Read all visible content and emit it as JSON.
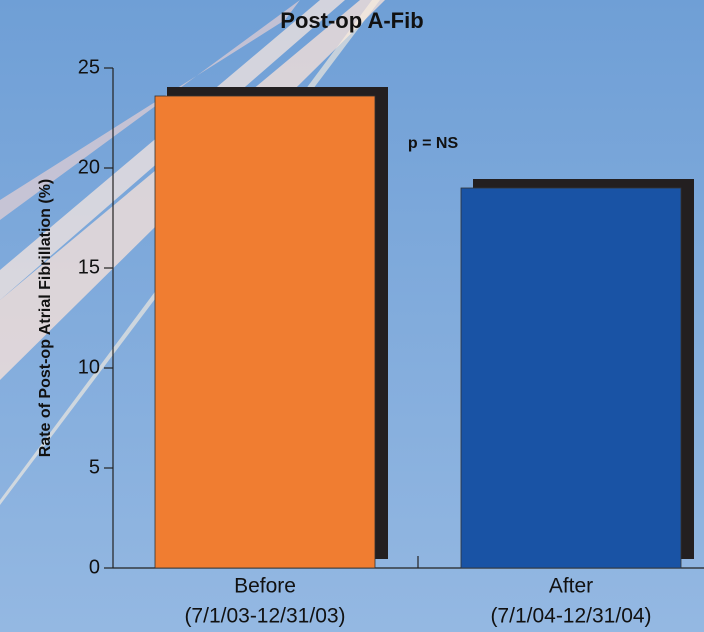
{
  "chart_data": {
    "type": "bar",
    "title": "Post-op A-Fib",
    "y_label": "Rate of Post-op Atrial Fibrillation (%)",
    "categories": [
      [
        "Before",
        "(7/1/03-12/31/03)"
      ],
      [
        "After",
        "(7/1/04-12/31/04)"
      ]
    ],
    "values": [
      23.6,
      19
    ],
    "colors": [
      "#f07d31",
      "#1953a5"
    ],
    "annotation": "p = NS",
    "ylim": [
      0,
      25
    ],
    "yticks": [
      0,
      5,
      10,
      15,
      20,
      25
    ],
    "grid": false
  }
}
